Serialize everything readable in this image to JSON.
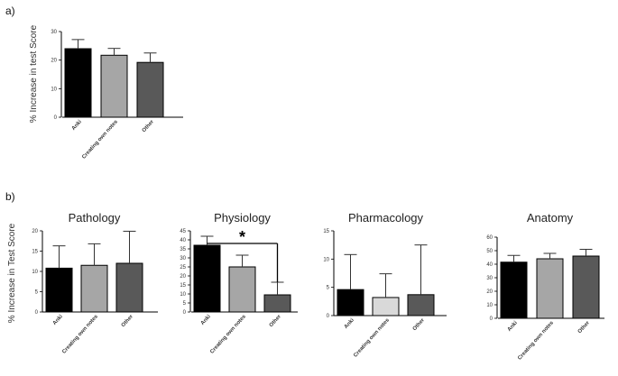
{
  "panel_labels": [
    "a)",
    "b)"
  ],
  "ylabels": [
    "% Increase in test Score",
    "% Increase in Test Score"
  ],
  "chart_data": [
    {
      "type": "bar",
      "panel": "a",
      "title": "",
      "ylabel": "% Increase in test Score",
      "categories": [
        "Anki",
        "Creating own notes",
        "Other"
      ],
      "values": [
        24,
        21.7,
        19.2
      ],
      "errors": [
        3.2,
        2.4,
        3.3
      ],
      "colors": [
        "#000000",
        "#a6a6a6",
        "#595959"
      ],
      "ylim": [
        0,
        30
      ],
      "yticks": [
        0,
        10,
        20,
        30
      ]
    },
    {
      "type": "bar",
      "panel": "b",
      "title": "Pathology",
      "categories": [
        "Anki",
        "Creating own notes",
        "Other"
      ],
      "values": [
        10.8,
        11.5,
        12
      ],
      "errors": [
        5.5,
        5.3,
        7.9
      ],
      "colors": [
        "#000000",
        "#a6a6a6",
        "#595959"
      ],
      "ylim": [
        0,
        20
      ],
      "yticks": [
        0,
        5,
        10,
        15,
        20
      ]
    },
    {
      "type": "bar",
      "panel": "b",
      "title": "Physiology",
      "categories": [
        "Anki",
        "Creating own notes",
        "Other"
      ],
      "values": [
        37,
        25,
        9.5
      ],
      "errors": [
        5,
        6.5,
        7
      ],
      "colors": [
        "#000000",
        "#a6a6a6",
        "#595959"
      ],
      "ylim": [
        0,
        45
      ],
      "yticks": [
        0,
        5,
        10,
        15,
        20,
        25,
        30,
        35,
        40,
        45
      ],
      "significance": {
        "from": 0,
        "to": 2,
        "label": "*"
      }
    },
    {
      "type": "bar",
      "panel": "b",
      "title": "Pharmacology",
      "categories": [
        "Anki",
        "Creating own notes",
        "Other"
      ],
      "values": [
        4.6,
        3.2,
        3.7
      ],
      "errors": [
        6.2,
        4.2,
        8.8
      ],
      "colors": [
        "#000000",
        "#d9d9d9",
        "#595959"
      ],
      "ylim": [
        0,
        15
      ],
      "yticks": [
        0,
        5,
        10,
        15
      ]
    },
    {
      "type": "bar",
      "panel": "b",
      "title": "Anatomy",
      "categories": [
        "Anki",
        "Creating own notes",
        "Other"
      ],
      "values": [
        41.5,
        44,
        46
      ],
      "errors": [
        5,
        4,
        5
      ],
      "colors": [
        "#000000",
        "#a6a6a6",
        "#595959"
      ],
      "ylim": [
        0,
        60
      ],
      "yticks": [
        0,
        10,
        20,
        30,
        40,
        50,
        60
      ]
    }
  ]
}
